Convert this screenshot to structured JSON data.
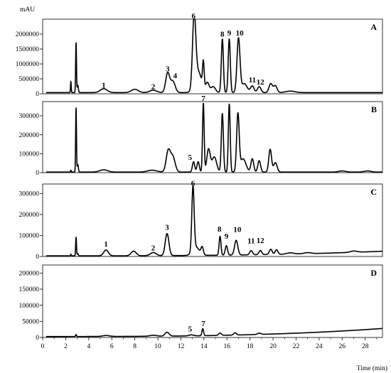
{
  "chart_data": {
    "type": "line",
    "y_unit_label": "mAU",
    "xlabel": "Time (min)",
    "xlim": [
      0,
      29.5
    ],
    "x_ticks": [
      0,
      2,
      4,
      6,
      8,
      10,
      12,
      14,
      16,
      18,
      20,
      22,
      24,
      26,
      28
    ],
    "panels": [
      {
        "letter": "A",
        "ylim": [
          0,
          2500000
        ],
        "y_ticks": [
          0,
          500000,
          1000000,
          1500000,
          2000000
        ],
        "baseline": 40000,
        "drift": 0,
        "peaks": [
          [
            2.45,
            380000,
            0.03
          ],
          [
            2.9,
            1700000,
            0.035
          ],
          [
            3.05,
            250000,
            0.05
          ],
          [
            5.3,
            130000,
            0.3
          ],
          [
            8.0,
            110000,
            0.3
          ],
          [
            9.6,
            80000,
            0.3
          ],
          [
            10.85,
            650000,
            0.17
          ],
          [
            11.3,
            380000,
            0.2
          ],
          [
            13.15,
            2350000,
            0.14
          ],
          [
            13.5,
            700000,
            0.3
          ],
          [
            13.95,
            850000,
            0.07
          ],
          [
            14.3,
            320000,
            0.15
          ],
          [
            14.8,
            200000,
            0.2
          ],
          [
            15.6,
            1800000,
            0.09
          ],
          [
            16.2,
            1800000,
            0.09
          ],
          [
            17.0,
            1800000,
            0.13
          ],
          [
            17.5,
            300000,
            0.25
          ],
          [
            18.2,
            220000,
            0.15
          ],
          [
            18.8,
            200000,
            0.15
          ],
          [
            19.8,
            300000,
            0.15
          ],
          [
            20.2,
            230000,
            0.15
          ],
          [
            21.5,
            50000,
            0.4
          ]
        ],
        "labels": [
          {
            "text": "1",
            "x": 5.3,
            "y": 160000
          },
          {
            "text": "2",
            "x": 9.6,
            "y": 110000
          },
          {
            "text": "3",
            "x": 10.85,
            "y": 700000
          },
          {
            "text": "4",
            "x": 11.5,
            "y": 480000
          },
          {
            "text": "6",
            "x": 13.1,
            "y": 2500000
          },
          {
            "text": "8",
            "x": 15.6,
            "y": 1870000
          },
          {
            "text": "9",
            "x": 16.2,
            "y": 1900000
          },
          {
            "text": "10",
            "x": 17.1,
            "y": 1900000
          },
          {
            "text": "11",
            "x": 18.2,
            "y": 330000
          },
          {
            "text": "12",
            "x": 18.9,
            "y": 260000
          }
        ]
      },
      {
        "letter": "B",
        "ylim": [
          0,
          375000
        ],
        "y_ticks": [
          0,
          100000,
          200000,
          300000
        ],
        "baseline": 3000,
        "drift": 0,
        "peaks": [
          [
            2.45,
            10000,
            0.03
          ],
          [
            2.9,
            345000,
            0.035
          ],
          [
            3.05,
            40000,
            0.05
          ],
          [
            5.3,
            12000,
            0.35
          ],
          [
            9.5,
            10000,
            0.4
          ],
          [
            10.9,
            110000,
            0.18
          ],
          [
            11.3,
            80000,
            0.2
          ],
          [
            13.1,
            55000,
            0.1
          ],
          [
            13.5,
            55000,
            0.1
          ],
          [
            13.95,
            365000,
            0.07
          ],
          [
            14.4,
            120000,
            0.15
          ],
          [
            14.9,
            80000,
            0.2
          ],
          [
            15.6,
            310000,
            0.09
          ],
          [
            16.2,
            360000,
            0.08
          ],
          [
            16.95,
            300000,
            0.11
          ],
          [
            17.4,
            70000,
            0.25
          ],
          [
            18.2,
            70000,
            0.12
          ],
          [
            18.8,
            60000,
            0.12
          ],
          [
            19.75,
            120000,
            0.12
          ],
          [
            20.2,
            50000,
            0.15
          ],
          [
            26.0,
            6000,
            0.3
          ],
          [
            28.2,
            6000,
            0.3
          ]
        ],
        "labels": [
          {
            "text": "5",
            "x": 12.8,
            "y": 60000
          },
          {
            "text": "7",
            "x": 13.95,
            "y": 380000
          }
        ]
      },
      {
        "letter": "C",
        "ylim": [
          0,
          345000
        ],
        "y_ticks": [
          0,
          100000,
          200000,
          300000
        ],
        "baseline": 3000,
        "drift": 22000,
        "peaks": [
          [
            2.45,
            8000,
            0.03
          ],
          [
            2.9,
            90000,
            0.035
          ],
          [
            3.05,
            10000,
            0.05
          ],
          [
            5.5,
            28000,
            0.2
          ],
          [
            7.9,
            22000,
            0.22
          ],
          [
            9.6,
            15000,
            0.25
          ],
          [
            10.8,
            105000,
            0.16
          ],
          [
            13.05,
            305000,
            0.1
          ],
          [
            13.3,
            40000,
            0.3
          ],
          [
            13.85,
            35000,
            0.1
          ],
          [
            15.4,
            90000,
            0.08
          ],
          [
            15.95,
            45000,
            0.1
          ],
          [
            16.8,
            70000,
            0.14
          ],
          [
            18.1,
            20000,
            0.12
          ],
          [
            18.9,
            20000,
            0.12
          ],
          [
            19.8,
            25000,
            0.12
          ],
          [
            20.3,
            22000,
            0.12
          ],
          [
            21.5,
            6000,
            0.3
          ],
          [
            23.0,
            5000,
            0.3
          ],
          [
            27.0,
            6000,
            0.3
          ]
        ],
        "labels": [
          {
            "text": "1",
            "x": 5.5,
            "y": 40000
          },
          {
            "text": "2",
            "x": 9.6,
            "y": 22000
          },
          {
            "text": "3",
            "x": 10.8,
            "y": 120000
          },
          {
            "text": "6",
            "x": 13.05,
            "y": 330000
          },
          {
            "text": "8",
            "x": 15.35,
            "y": 112000
          },
          {
            "text": "9",
            "x": 15.95,
            "y": 78000
          },
          {
            "text": "10",
            "x": 16.9,
            "y": 110000
          },
          {
            "text": "11",
            "x": 18.1,
            "y": 55000
          },
          {
            "text": "12",
            "x": 18.9,
            "y": 58000
          }
        ]
      },
      {
        "letter": "D",
        "ylim": [
          0,
          225000
        ],
        "y_ticks": [
          0,
          50000,
          100000,
          150000,
          200000
        ],
        "baseline": 3000,
        "drift": 25000,
        "peaks": [
          [
            2.9,
            6000,
            0.04
          ],
          [
            5.5,
            3000,
            0.3
          ],
          [
            9.6,
            3000,
            0.3
          ],
          [
            10.8,
            12000,
            0.18
          ],
          [
            12.9,
            3000,
            0.2
          ],
          [
            13.9,
            22000,
            0.07
          ],
          [
            15.4,
            7000,
            0.12
          ],
          [
            16.7,
            7000,
            0.12
          ],
          [
            18.8,
            4000,
            0.15
          ]
        ],
        "labels": [
          {
            "text": "5",
            "x": 12.8,
            "y": 14000
          },
          {
            "text": "7",
            "x": 13.95,
            "y": 31000
          }
        ]
      }
    ]
  }
}
